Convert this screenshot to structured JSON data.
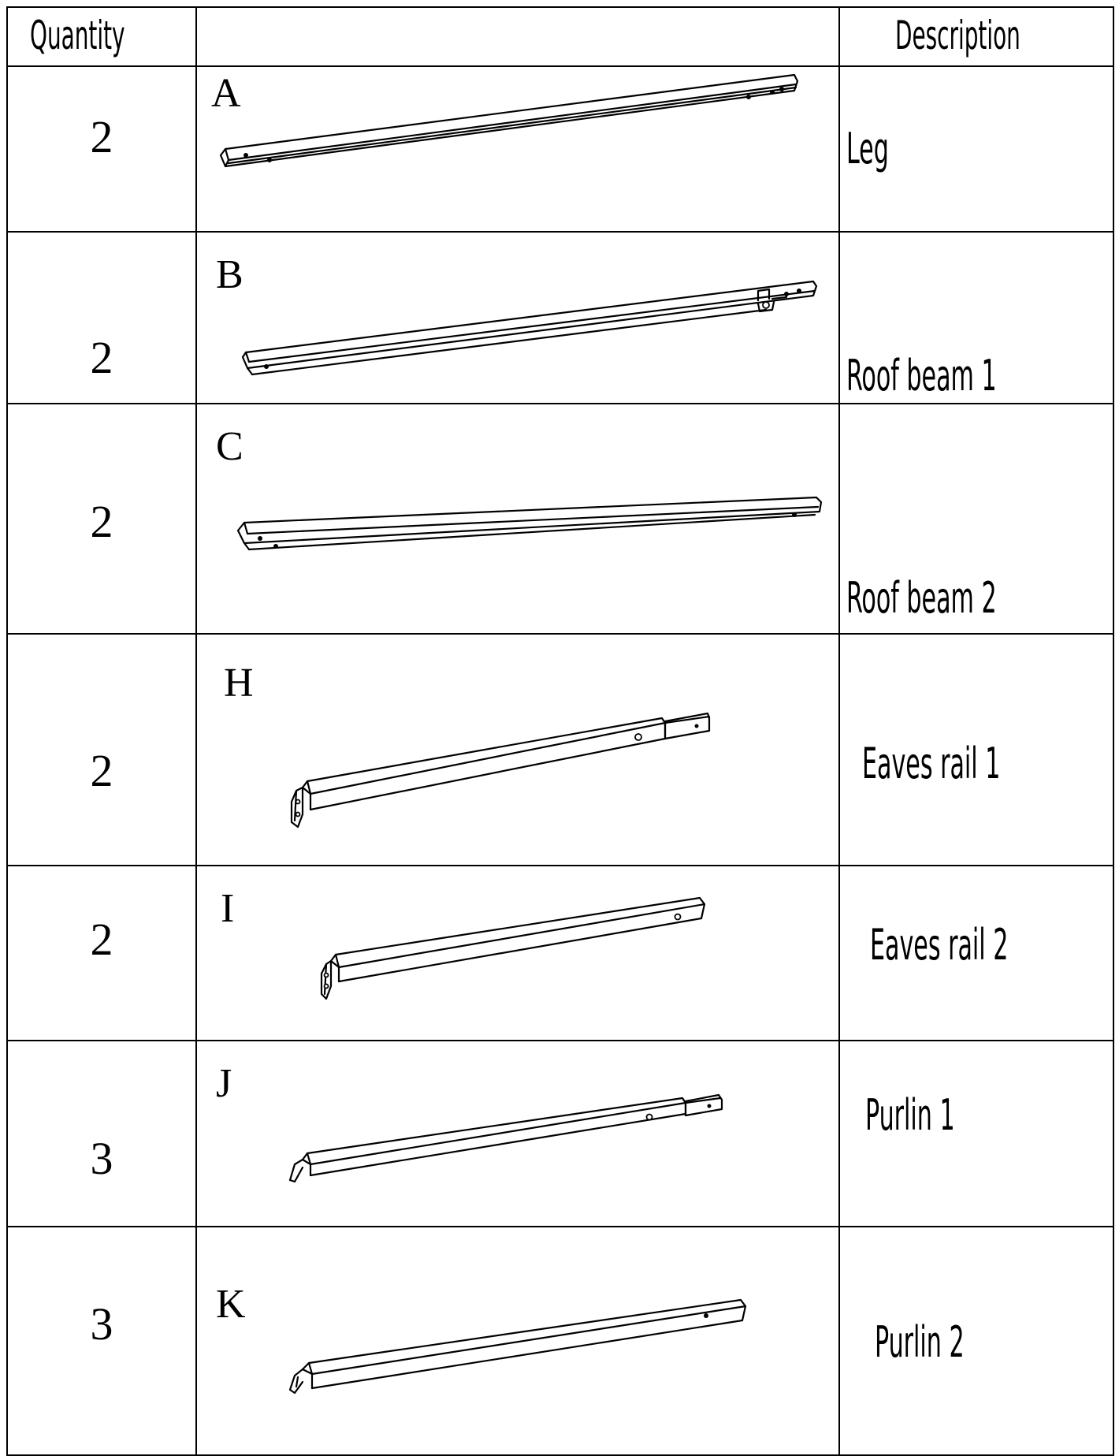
{
  "header": {
    "quantity": "Quantity",
    "part": "",
    "description": "Description"
  },
  "rows": [
    {
      "quantity": "2",
      "letter": "A",
      "description": "Leg"
    },
    {
      "quantity": "2",
      "letter": "B",
      "description": "Roof beam 1"
    },
    {
      "quantity": "2",
      "letter": "C",
      "description": "Roof beam 2"
    },
    {
      "quantity": "2",
      "letter": "H",
      "description": "Eaves rail 1"
    },
    {
      "quantity": "2",
      "letter": "I",
      "description": "Eaves rail 2"
    },
    {
      "quantity": "3",
      "letter": "J",
      "description": "Purlin 1"
    },
    {
      "quantity": "3",
      "letter": "K",
      "description": "Purlin 2"
    }
  ]
}
